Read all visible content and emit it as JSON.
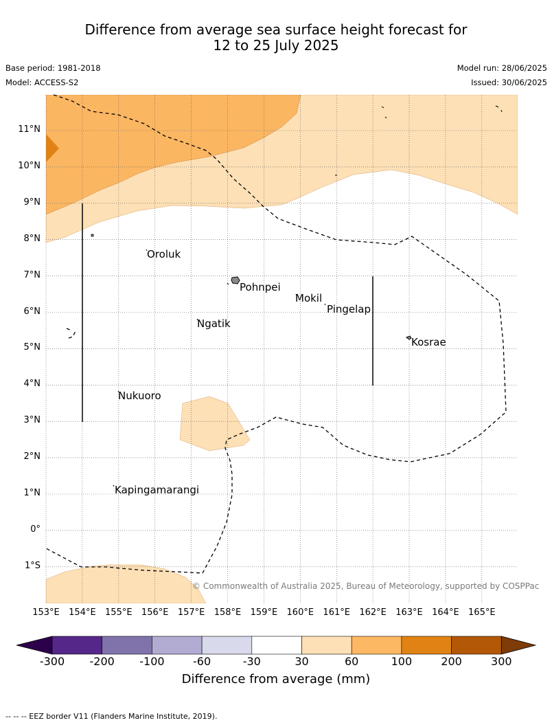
{
  "title": {
    "line1": "Difference from average sea surface height forecast for",
    "line2": "12 to 25 July 2025"
  },
  "meta": {
    "base_period": "Base period: 1981-2018",
    "model": "Model: ACCESS-S2",
    "model_run": "Model run: 28/06/2025",
    "issued": "Issued: 30/06/2025"
  },
  "map": {
    "lat_labels": [
      "11°N",
      "10°N",
      "9°N",
      "8°N",
      "7°N",
      "6°N",
      "5°N",
      "4°N",
      "3°N",
      "2°N",
      "1°N",
      "0°",
      "1°S"
    ],
    "lon_labels": [
      "153°E",
      "154°E",
      "155°E",
      "156°E",
      "157°E",
      "158°E",
      "159°E",
      "160°E",
      "161°E",
      "162°E",
      "163°E",
      "164°E",
      "165°E"
    ],
    "places": {
      "oroluk": "Oroluk",
      "pohnpei": "Pohnpei",
      "mokil": "Mokil",
      "pingelap": "Pingelap",
      "ngatik": "Ngatik",
      "kosrae": "Kosrae",
      "nukuoro": "Nukuoro",
      "kapingamarangi": "Kapingamarangi"
    },
    "copyright": "© Commonwealth of Australia 2025, Bureau of Meteorology, supported by COSPPac",
    "colors": {
      "band_30_60": "#fde0b6",
      "band_60_100": "#fbb662",
      "band_100_200": "#e08214"
    }
  },
  "colorbar": {
    "title": "Difference from average (mm)",
    "labels": [
      "-300",
      "-200",
      "-100",
      "-60",
      "-30",
      "30",
      "60",
      "100",
      "200",
      "300"
    ],
    "colors": [
      "#2d004b",
      "#542788",
      "#8073ac",
      "#b2abd2",
      "#d8daeb",
      "#ffffff",
      "#fee0b6",
      "#fdb863",
      "#e08214",
      "#b35806",
      "#7f3b08"
    ]
  },
  "footer": {
    "eez_note": "--  --  -- EEZ border V11 (Flanders Marine Institute, 2019)."
  }
}
